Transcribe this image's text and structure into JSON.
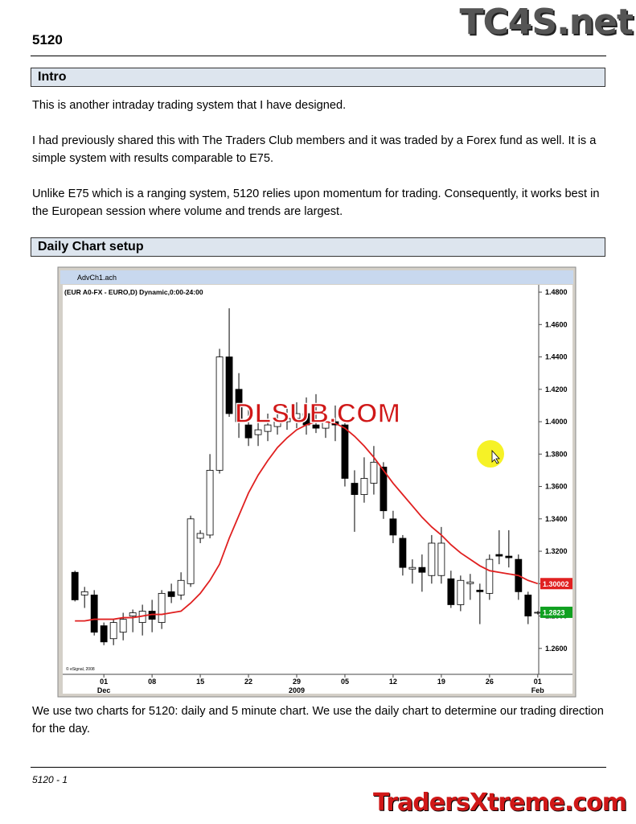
{
  "header": {
    "title": "5120",
    "logo": "TC4S.net"
  },
  "sections": [
    {
      "heading": "Intro",
      "paragraphs": [
        "This is another intraday trading system that I have designed.",
        "I had previously shared this with The Traders Club members and it was traded by a Forex fund as well. It is a simple system with results comparable to E75.",
        "Unlike E75 which is a ranging system, 5120 relies upon momentum for trading.  Consequently, it works best in the European session where volume and trends are largest."
      ]
    },
    {
      "heading": "Daily Chart setup",
      "paragraphs": [
        "We use two charts for 5120:  daily and 5 minute chart.  We use the daily chart to determine our trading direction for the day."
      ]
    }
  ],
  "chart": {
    "type": "candlestick",
    "window_title": "AdvCh1.ach",
    "label": "(EUR A0-FX - EURO,D) Dynamic,0:00-24:00",
    "copyright": "© eSignal, 2008",
    "watermark": "DLSUB.COM",
    "xlim": [
      -1.1,
      48.1
    ],
    "ylim": [
      1.244,
      1.484
    ],
    "yticks": [
      {
        "value": 1.26,
        "label": "1.2600"
      },
      {
        "value": 1.28,
        "label": "1.2800"
      },
      {
        "value": 1.3,
        "label": "1.3000"
      },
      {
        "value": 1.32,
        "label": "1.3200"
      },
      {
        "value": 1.34,
        "label": "1.3400"
      },
      {
        "value": 1.36,
        "label": "1.3600"
      },
      {
        "value": 1.38,
        "label": "1.3800"
      },
      {
        "value": 1.4,
        "label": "1.4000"
      },
      {
        "value": 1.42,
        "label": "1.4200"
      },
      {
        "value": 1.44,
        "label": "1.4400"
      },
      {
        "value": 1.46,
        "label": "1.4600"
      },
      {
        "value": 1.48,
        "label": "1.4800"
      }
    ],
    "xticks": [
      {
        "value": 3,
        "label": "01"
      },
      {
        "value": 8,
        "label": "08"
      },
      {
        "value": 13,
        "label": "15"
      },
      {
        "value": 18,
        "label": "22"
      },
      {
        "value": 23,
        "label": "29"
      },
      {
        "value": 28,
        "label": "05"
      },
      {
        "value": 33,
        "label": "12"
      },
      {
        "value": 38,
        "label": "19"
      },
      {
        "value": 43,
        "label": "26"
      },
      {
        "value": 48,
        "label": "01"
      }
    ],
    "month_labels": [
      {
        "value": 3,
        "label": "Dec"
      },
      {
        "value": 23,
        "label": "2009"
      },
      {
        "value": 48,
        "label": "Feb"
      }
    ],
    "up_color": "#ffffff",
    "down_color": "#000000",
    "candles": [
      {
        "open": 1.307,
        "high": 1.308,
        "low": 1.289,
        "close": 1.29
      },
      {
        "open": 1.293,
        "high": 1.298,
        "low": 1.285,
        "close": 1.295
      },
      {
        "open": 1.293,
        "high": 1.296,
        "low": 1.268,
        "close": 1.27
      },
      {
        "open": 1.274,
        "high": 1.276,
        "low": 1.262,
        "close": 1.264
      },
      {
        "open": 1.266,
        "high": 1.278,
        "low": 1.262,
        "close": 1.276
      },
      {
        "open": 1.27,
        "high": 1.282,
        "low": 1.265,
        "close": 1.278
      },
      {
        "open": 1.28,
        "high": 1.284,
        "low": 1.27,
        "close": 1.282
      },
      {
        "open": 1.276,
        "high": 1.287,
        "low": 1.268,
        "close": 1.283
      },
      {
        "open": 1.283,
        "high": 1.29,
        "low": 1.27,
        "close": 1.278
      },
      {
        "open": 1.276,
        "high": 1.296,
        "low": 1.272,
        "close": 1.294
      },
      {
        "open": 1.295,
        "high": 1.3,
        "low": 1.288,
        "close": 1.292
      },
      {
        "open": 1.293,
        "high": 1.307,
        "low": 1.29,
        "close": 1.302
      },
      {
        "open": 1.3,
        "high": 1.342,
        "low": 1.298,
        "close": 1.34
      },
      {
        "open": 1.328,
        "high": 1.333,
        "low": 1.325,
        "close": 1.331
      },
      {
        "open": 1.33,
        "high": 1.38,
        "low": 1.328,
        "close": 1.37
      },
      {
        "open": 1.37,
        "high": 1.445,
        "low": 1.368,
        "close": 1.44
      },
      {
        "open": 1.44,
        "high": 1.47,
        "low": 1.403,
        "close": 1.405
      },
      {
        "open": 1.42,
        "high": 1.43,
        "low": 1.39,
        "close": 1.4
      },
      {
        "open": 1.398,
        "high": 1.41,
        "low": 1.385,
        "close": 1.39
      },
      {
        "open": 1.392,
        "high": 1.4,
        "low": 1.385,
        "close": 1.395
      },
      {
        "open": 1.394,
        "high": 1.405,
        "low": 1.388,
        "close": 1.398
      },
      {
        "open": 1.397,
        "high": 1.408,
        "low": 1.392,
        "close": 1.4
      },
      {
        "open": 1.4,
        "high": 1.41,
        "low": 1.395,
        "close": 1.402
      },
      {
        "open": 1.402,
        "high": 1.412,
        "low": 1.396,
        "close": 1.405
      },
      {
        "open": 1.405,
        "high": 1.415,
        "low": 1.392,
        "close": 1.398
      },
      {
        "open": 1.398,
        "high": 1.417,
        "low": 1.393,
        "close": 1.396
      },
      {
        "open": 1.396,
        "high": 1.405,
        "low": 1.39,
        "close": 1.4
      },
      {
        "open": 1.4,
        "high": 1.41,
        "low": 1.388,
        "close": 1.398
      },
      {
        "open": 1.398,
        "high": 1.402,
        "low": 1.36,
        "close": 1.365
      },
      {
        "open": 1.362,
        "high": 1.37,
        "low": 1.332,
        "close": 1.355
      },
      {
        "open": 1.355,
        "high": 1.378,
        "low": 1.35,
        "close": 1.365
      },
      {
        "open": 1.362,
        "high": 1.385,
        "low": 1.355,
        "close": 1.375
      },
      {
        "open": 1.372,
        "high": 1.375,
        "low": 1.34,
        "close": 1.345
      },
      {
        "open": 1.34,
        "high": 1.345,
        "low": 1.325,
        "close": 1.33
      },
      {
        "open": 1.328,
        "high": 1.33,
        "low": 1.305,
        "close": 1.31
      },
      {
        "open": 1.309,
        "high": 1.315,
        "low": 1.3,
        "close": 1.31
      },
      {
        "open": 1.31,
        "high": 1.318,
        "low": 1.295,
        "close": 1.307
      },
      {
        "open": 1.305,
        "high": 1.33,
        "low": 1.3,
        "close": 1.325
      },
      {
        "open": 1.305,
        "high": 1.335,
        "low": 1.3,
        "close": 1.325
      },
      {
        "open": 1.303,
        "high": 1.308,
        "low": 1.285,
        "close": 1.287
      },
      {
        "open": 1.287,
        "high": 1.305,
        "low": 1.283,
        "close": 1.302
      },
      {
        "open": 1.3,
        "high": 1.306,
        "low": 1.29,
        "close": 1.301
      },
      {
        "open": 1.296,
        "high": 1.3,
        "low": 1.275,
        "close": 1.295
      },
      {
        "open": 1.294,
        "high": 1.318,
        "low": 1.29,
        "close": 1.315
      },
      {
        "open": 1.318,
        "high": 1.333,
        "low": 1.312,
        "close": 1.317
      },
      {
        "open": 1.317,
        "high": 1.333,
        "low": 1.31,
        "close": 1.316
      },
      {
        "open": 1.315,
        "high": 1.318,
        "low": 1.29,
        "close": 1.295
      },
      {
        "open": 1.293,
        "high": 1.295,
        "low": 1.275,
        "close": 1.28
      },
      {
        "open": 1.282,
        "high": 1.283,
        "low": 1.281,
        "close": 1.2823
      }
    ],
    "ma": {
      "color": "#e02020",
      "values": [
        1.277,
        1.277,
        1.278,
        1.278,
        1.278,
        1.279,
        1.279,
        1.28,
        1.281,
        1.281,
        1.282,
        1.283,
        1.288,
        1.294,
        1.302,
        1.312,
        1.328,
        1.342,
        1.356,
        1.367,
        1.376,
        1.384,
        1.39,
        1.395,
        1.398,
        1.4,
        1.4,
        1.399,
        1.396,
        1.391,
        1.385,
        1.378,
        1.37,
        1.362,
        1.355,
        1.348,
        1.341,
        1.335,
        1.33,
        1.324,
        1.319,
        1.315,
        1.311,
        1.308,
        1.307,
        1.306,
        1.305,
        1.302,
        1.3
      ]
    },
    "last_ma_label": 1.30002,
    "last_close_label": 1.2823
  },
  "footer": {
    "page": "5120 - 1",
    "logo": "TradersXtreme.com"
  }
}
